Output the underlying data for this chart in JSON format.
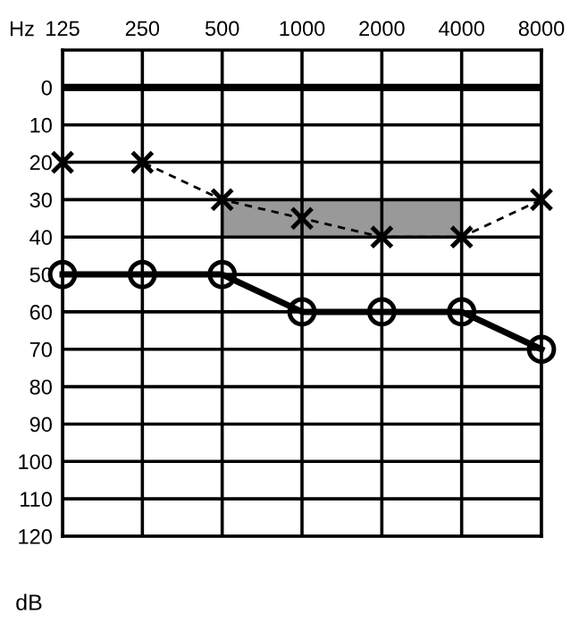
{
  "chart_data": {
    "type": "line",
    "xlabel": "Hz",
    "ylabel": "dB",
    "categories": [
      "125",
      "250",
      "500",
      "1000",
      "2000",
      "4000",
      "8000"
    ],
    "ylim": [
      120,
      -10
    ],
    "yticks": [
      0,
      10,
      20,
      30,
      40,
      50,
      60,
      70,
      80,
      90,
      100,
      110,
      120
    ],
    "grid": true,
    "ref_lines": [
      {
        "axis": "y",
        "value": 0,
        "color": "#000000",
        "line_style": "solid"
      }
    ],
    "series": [
      {
        "color": "#000000",
        "marker": "cross",
        "line_style": "dashed",
        "values": [
          20,
          20,
          30,
          35,
          40,
          40,
          30
        ],
        "lower": [
          null,
          null,
          30,
          30,
          30,
          30,
          null
        ],
        "upper": [
          null,
          null,
          40,
          40,
          40,
          40,
          null
        ]
      },
      {
        "color": "#000000",
        "marker": "circle",
        "line_style": "solid",
        "values": [
          50,
          50,
          50,
          60,
          60,
          60,
          70
        ]
      }
    ]
  }
}
